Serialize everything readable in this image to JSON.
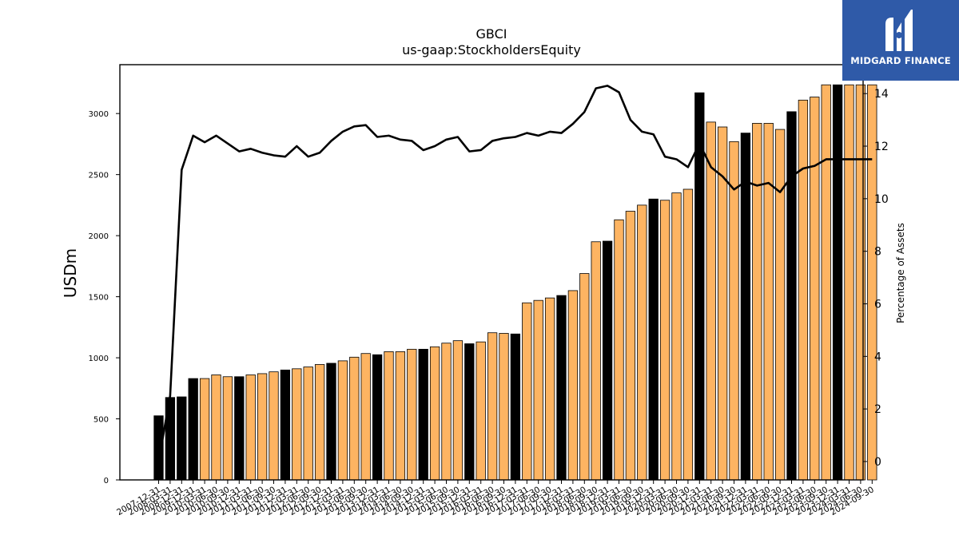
{
  "chart_data": {
    "type": "bar",
    "title": "GBCI",
    "subtitle": "us-gaap:StockholdersEquity",
    "ylabel": "USDm",
    "y2label": "Percentage of Assets",
    "ylim": [
      0,
      3400
    ],
    "y2lim": [
      -0.7,
      15.1
    ],
    "yticks": [
      0,
      500,
      1000,
      1500,
      2000,
      2500,
      3000
    ],
    "y2ticks": [
      0,
      2,
      4,
      6,
      8,
      10,
      12,
      14
    ],
    "categories": [
      "2007-12-31",
      "2008-03-31",
      "2008-12-31",
      "2009-12-31",
      "2010-03-31",
      "2010-06-30",
      "2010-09-30",
      "2010-12-31",
      "2011-03-31",
      "2011-06-30",
      "2011-09-30",
      "2011-12-31",
      "2012-03-31",
      "2012-06-30",
      "2012-09-30",
      "2012-12-31",
      "2013-03-31",
      "2013-06-30",
      "2013-09-30",
      "2013-12-31",
      "2014-03-31",
      "2014-06-30",
      "2014-09-30",
      "2014-12-31",
      "2015-03-31",
      "2015-06-30",
      "2015-09-30",
      "2015-12-31",
      "2016-03-31",
      "2016-06-30",
      "2016-09-30",
      "2016-12-31",
      "2017-03-31",
      "2017-06-30",
      "2017-09-30",
      "2017-12-31",
      "2018-03-31",
      "2018-06-30",
      "2018-09-30",
      "2018-12-31",
      "2019-03-31",
      "2019-06-30",
      "2019-09-30",
      "2019-12-31",
      "2020-03-31",
      "2020-06-30",
      "2020-09-30",
      "2020-12-31",
      "2021-03-31",
      "2021-06-30",
      "2021-09-30",
      "2021-12-31",
      "2022-03-31",
      "2022-06-30",
      "2022-09-30",
      "2022-12-31",
      "2023-03-31",
      "2023-06-30",
      "2023-09-30",
      "2023-12-31",
      "2024-03-31",
      "2024-06-30",
      "2024-09-30"
    ],
    "xticklabels_shown": [
      "2007-12-31",
      "2008-03-31",
      "2008-12-31",
      "2009-12-31",
      "2010-03-31",
      "2010-06-30",
      "2010-09-30",
      "2010-12-31",
      "2011-03-31",
      "2011-06-30",
      "2011-09-30",
      "2011-12-31",
      "2012-03-31",
      "2012-06-30",
      "2012-09-30",
      "2012-12-31",
      "2013-03-31",
      "2013-06-30",
      "2013-09-30",
      "2013-12-31",
      "2014-03-31",
      "2014-06-30",
      "2014-09-30",
      "2014-12-31",
      "2015-03-31",
      "2015-06-30",
      "2015-09-30",
      "2015-12-31",
      "2016-03-31",
      "2016-06-30",
      "2016-09-30",
      "2016-12-31",
      "2017-03-31",
      "2017-06-30",
      "2017-09-30",
      "2017-12-31",
      "2018-03-31",
      "2018-06-30",
      "2018-09-30",
      "2018-12-31",
      "2019-03-31",
      "2019-06-30",
      "2019-09-30",
      "2019-12-31",
      "2020-03-31",
      "2020-06-30",
      "2020-09-30",
      "2020-12-31",
      "2021-03-31",
      "2021-06-30",
      "2021-09-30",
      "2021-12-31",
      "2022-03-31",
      "2022-06-30",
      "2022-09-30",
      "2022-12-31",
      "2023-03-31",
      "2023-06-30",
      "2023-09-30",
      "2023-12-31",
      "2024-03-31",
      "2024-06-30",
      "2024-09-30"
    ],
    "values": [
      525,
      675,
      680,
      830,
      830,
      860,
      845,
      845,
      860,
      870,
      885,
      900,
      910,
      925,
      945,
      955,
      975,
      1005,
      1035,
      1025,
      1050,
      1050,
      1070,
      1070,
      1090,
      1120,
      1140,
      1115,
      1130,
      1205,
      1200,
      1195,
      1450,
      1470,
      1490,
      1510,
      1550,
      1690,
      1950,
      1955,
      2130,
      2200,
      2250,
      2300,
      2290,
      2350,
      2380,
      3170,
      2930,
      2890,
      2770,
      2840,
      2920,
      2920,
      2870,
      3015,
      3110,
      3135,
      3235,
      3235,
      3235,
      3235,
      3235
    ],
    "bar_kind": [
      "annual",
      "annual",
      "annual",
      "annual",
      "q",
      "q",
      "q",
      "annual",
      "q",
      "q",
      "q",
      "annual",
      "q",
      "q",
      "q",
      "annual",
      "q",
      "q",
      "q",
      "annual",
      "q",
      "q",
      "q",
      "annual",
      "q",
      "q",
      "q",
      "annual",
      "q",
      "q",
      "q",
      "annual",
      "q",
      "q",
      "q",
      "annual",
      "q",
      "q",
      "q",
      "annual",
      "q",
      "q",
      "q",
      "annual",
      "q",
      "q",
      "q",
      "annual",
      "q",
      "q",
      "q",
      "annual",
      "q",
      "q",
      "q",
      "annual",
      "q",
      "q",
      "q",
      "annual",
      "q",
      "q",
      "q"
    ],
    "line_series": {
      "name": "",
      "values": [
        0,
        2.5,
        11.1,
        12.4,
        12.15,
        12.4,
        12.1,
        11.8,
        11.9,
        11.75,
        11.65,
        11.6,
        12,
        11.6,
        11.75,
        12.2,
        12.55,
        12.75,
        12.8,
        12.35,
        12.4,
        12.25,
        12.2,
        11.85,
        12,
        12.25,
        12.35,
        11.8,
        11.85,
        12.2,
        12.3,
        12.35,
        12.5,
        12.4,
        12.55,
        12.5,
        12.85,
        13.3,
        14.2,
        14.3,
        14.05,
        13,
        12.55,
        12.45,
        11.6,
        11.5,
        11.2,
        12.1,
        11.2,
        10.85,
        10.35,
        10.65,
        10.5,
        10.6,
        10.25,
        10.85,
        11.15,
        11.25,
        11.5,
        11.5,
        11.5,
        11.5,
        11.5
      ]
    },
    "colors": {
      "quarter_bar": "#fdb462",
      "annual_bar": "#000000",
      "line": "#000000",
      "logo_bg": "#2f5aa8"
    },
    "grid": false,
    "legend": "none"
  },
  "logo": {
    "text": "MIDGARD FINANCE"
  }
}
